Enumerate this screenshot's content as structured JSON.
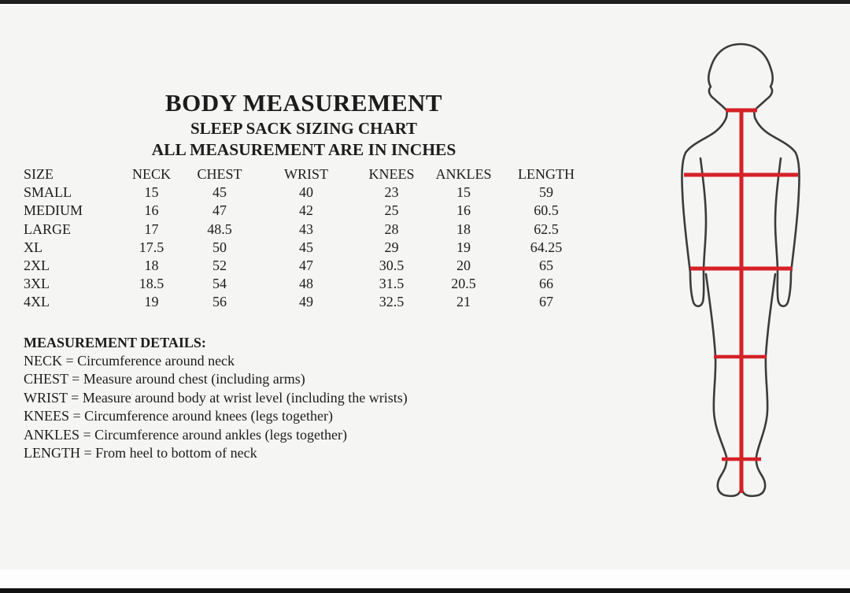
{
  "page": {
    "bg": "#f5f5f4",
    "topbar": "#1f1f1f",
    "bottombar": "#121212",
    "strip": "#fdfdfd",
    "ink": "#1c1c1c"
  },
  "header": {
    "title": "BODY MEASUREMENT",
    "subtitle": "SLEEP SACK SIZING CHART",
    "units_note": "ALL MEASUREMENT ARE IN INCHES"
  },
  "size_chart": {
    "type": "table",
    "columns": [
      "SIZE",
      "NECK",
      "CHEST",
      "WRIST",
      "KNEES",
      "ANKLES",
      "LENGTH"
    ],
    "rows": [
      [
        "SMALL",
        "15",
        "45",
        "40",
        "23",
        "15",
        "59"
      ],
      [
        "MEDIUM",
        "16",
        "47",
        "42",
        "25",
        "16",
        "60.5"
      ],
      [
        "LARGE",
        "17",
        "48.5",
        "43",
        "28",
        "18",
        "62.5"
      ],
      [
        "XL",
        "17.5",
        "50",
        "45",
        "29",
        "19",
        "64.25"
      ],
      [
        "2XL",
        "18",
        "52",
        "47",
        "30.5",
        "20",
        "65"
      ],
      [
        "3XL",
        "18.5",
        "54",
        "48",
        "31.5",
        "20.5",
        "66"
      ],
      [
        "4XL",
        "19",
        "56",
        "49",
        "32.5",
        "21",
        "67"
      ]
    ]
  },
  "details": {
    "heading": "MEASUREMENT DETAILS:",
    "items": [
      "NECK = Circumference around neck",
      "CHEST = Measure around chest (including arms)",
      "WRIST = Measure around body at wrist level (including the wrists)",
      "KNEES = Circumference around knees (legs together)",
      "ANKLES = Circumference around ankles (legs together)",
      "LENGTH = From heel to bottom of neck"
    ]
  },
  "figure": {
    "description": "back-view human body outline with red measurement lines",
    "outline_color": "#3b3b3b",
    "measure_line_color": "#d52127",
    "lines": [
      "neck-line",
      "chest-line",
      "wrist-line",
      "knees-line",
      "ankles-line",
      "length-line"
    ]
  }
}
